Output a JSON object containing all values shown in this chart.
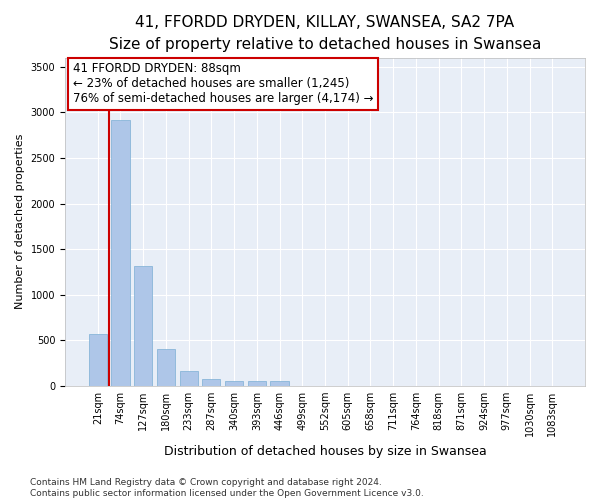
{
  "title": "41, FFORDD DRYDEN, KILLAY, SWANSEA, SA2 7PA",
  "subtitle": "Size of property relative to detached houses in Swansea",
  "xlabel": "Distribution of detached houses by size in Swansea",
  "ylabel": "Number of detached properties",
  "categories": [
    "21sqm",
    "74sqm",
    "127sqm",
    "180sqm",
    "233sqm",
    "287sqm",
    "340sqm",
    "393sqm",
    "446sqm",
    "499sqm",
    "552sqm",
    "605sqm",
    "658sqm",
    "711sqm",
    "764sqm",
    "818sqm",
    "871sqm",
    "924sqm",
    "977sqm",
    "1030sqm",
    "1083sqm"
  ],
  "bar_heights": [
    570,
    2920,
    1320,
    410,
    165,
    75,
    55,
    50,
    50,
    0,
    0,
    0,
    0,
    0,
    0,
    0,
    0,
    0,
    0,
    0,
    0
  ],
  "bar_color": "#aec6e8",
  "bar_edge_color": "#7bafd4",
  "background_color": "#e8eef7",
  "grid_color": "#ffffff",
  "annotation_line1": "41 FFORDD DRYDEN: 88sqm",
  "annotation_line2": "← 23% of detached houses are smaller (1,245)",
  "annotation_line3": "76% of semi-detached houses are larger (4,174) →",
  "annotation_box_color": "#cc0000",
  "vline_x": 0.5,
  "vline_color": "#cc0000",
  "ylim": [
    0,
    3600
  ],
  "yticks": [
    0,
    500,
    1000,
    1500,
    2000,
    2500,
    3000,
    3500
  ],
  "footer_line1": "Contains HM Land Registry data © Crown copyright and database right 2024.",
  "footer_line2": "Contains public sector information licensed under the Open Government Licence v3.0.",
  "title_fontsize": 11,
  "subtitle_fontsize": 9.5,
  "xlabel_fontsize": 9,
  "ylabel_fontsize": 8,
  "tick_fontsize": 7,
  "annotation_fontsize": 8.5,
  "footer_fontsize": 6.5
}
